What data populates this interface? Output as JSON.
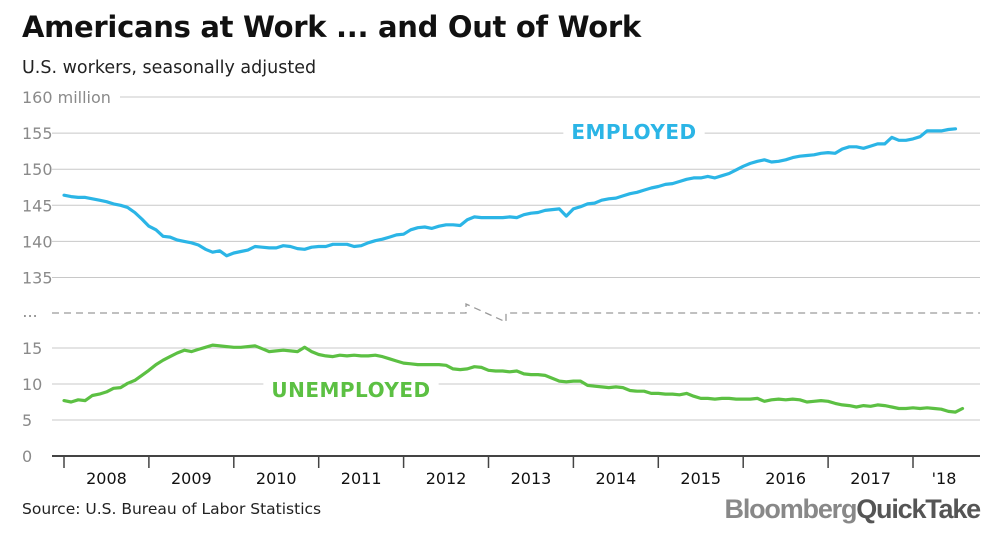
{
  "title": "Americans at Work ... and Out of Work",
  "subtitle": "U.S. workers, seasonally adjusted",
  "source": "Source: U.S. Bureau of Labor Statistics",
  "logo": {
    "part1": "Bloomberg",
    "part2": "QuickTake"
  },
  "colors": {
    "employed": "#2bb5e6",
    "unemployed": "#5cc043",
    "grid": "#c8c8c8",
    "axis": "#444444"
  },
  "chart_data": [
    {
      "type": "line",
      "ylabel": "",
      "ylim": [
        135,
        160
      ],
      "yticks": [
        "160 million",
        "155",
        "150",
        "145",
        "140",
        "135"
      ],
      "break_marker": "...",
      "series": [
        {
          "name": "EMPLOYED",
          "start": "2008-01",
          "freq": "monthly",
          "values": [
            146.4,
            146.2,
            146.1,
            146.1,
            145.9,
            145.7,
            145.5,
            145.2,
            145.0,
            144.7,
            144.0,
            143.1,
            142.1,
            141.6,
            140.7,
            140.6,
            140.2,
            140.0,
            139.8,
            139.5,
            138.9,
            138.5,
            138.7,
            138.0,
            138.4,
            138.6,
            138.8,
            139.3,
            139.2,
            139.1,
            139.1,
            139.4,
            139.3,
            139.0,
            138.9,
            139.2,
            139.3,
            139.3,
            139.6,
            139.6,
            139.6,
            139.3,
            139.4,
            139.8,
            140.1,
            140.3,
            140.6,
            140.9,
            141.0,
            141.6,
            141.9,
            142.0,
            141.8,
            142.1,
            142.3,
            142.3,
            142.2,
            143.0,
            143.4,
            143.3,
            143.3,
            143.3,
            143.3,
            143.4,
            143.3,
            143.7,
            143.9,
            144.0,
            144.3,
            144.4,
            144.5,
            143.5,
            144.5,
            144.8,
            145.2,
            145.3,
            145.7,
            145.9,
            146.0,
            146.3,
            146.6,
            146.8,
            147.1,
            147.4,
            147.6,
            147.9,
            148.0,
            148.3,
            148.6,
            148.8,
            148.8,
            149.0,
            148.8,
            149.1,
            149.4,
            149.9,
            150.4,
            150.8,
            151.1,
            151.3,
            151.0,
            151.1,
            151.3,
            151.6,
            151.8,
            151.9,
            152.0,
            152.2,
            152.3,
            152.2,
            152.8,
            153.1,
            153.1,
            152.9,
            153.2,
            153.5,
            153.5,
            154.4,
            154.0,
            154.0,
            154.2,
            154.5,
            155.3,
            155.3,
            155.3,
            155.5,
            155.6
          ]
        }
      ]
    },
    {
      "type": "line",
      "ylabel": "",
      "ylim": [
        0,
        15
      ],
      "yticks": [
        "15",
        "10",
        "5",
        "0"
      ],
      "xticks": [
        "2008",
        "2009",
        "2010",
        "2011",
        "2012",
        "2013",
        "2014",
        "2015",
        "2016",
        "2017",
        "'18"
      ],
      "series": [
        {
          "name": "UNEMPLOYED",
          "start": "2008-01",
          "freq": "monthly",
          "values": [
            7.7,
            7.5,
            7.8,
            7.7,
            8.4,
            8.6,
            8.9,
            9.4,
            9.5,
            10.1,
            10.5,
            11.2,
            11.9,
            12.7,
            13.3,
            13.8,
            14.3,
            14.7,
            14.5,
            14.8,
            15.1,
            15.4,
            15.3,
            15.2,
            15.1,
            15.1,
            15.2,
            15.3,
            14.9,
            14.5,
            14.6,
            14.7,
            14.6,
            14.5,
            15.1,
            14.5,
            14.1,
            13.9,
            13.8,
            14.0,
            13.9,
            14.0,
            13.9,
            13.9,
            14.0,
            13.8,
            13.5,
            13.2,
            12.9,
            12.8,
            12.7,
            12.7,
            12.7,
            12.7,
            12.6,
            12.1,
            12.0,
            12.1,
            12.4,
            12.3,
            11.9,
            11.8,
            11.8,
            11.7,
            11.8,
            11.4,
            11.3,
            11.3,
            11.2,
            10.8,
            10.4,
            10.3,
            10.4,
            10.4,
            9.8,
            9.7,
            9.6,
            9.5,
            9.6,
            9.5,
            9.1,
            9.0,
            9.0,
            8.7,
            8.7,
            8.6,
            8.6,
            8.5,
            8.7,
            8.3,
            8.0,
            8.0,
            7.9,
            8.0,
            8.0,
            7.9,
            7.9,
            7.9,
            8.0,
            7.6,
            7.8,
            7.9,
            7.8,
            7.9,
            7.8,
            7.5,
            7.6,
            7.7,
            7.6,
            7.3,
            7.1,
            7.0,
            6.8,
            7.0,
            6.9,
            7.1,
            7.0,
            6.8,
            6.6,
            6.6,
            6.7,
            6.6,
            6.7,
            6.6,
            6.5,
            6.2,
            6.1,
            6.6
          ]
        }
      ]
    }
  ]
}
